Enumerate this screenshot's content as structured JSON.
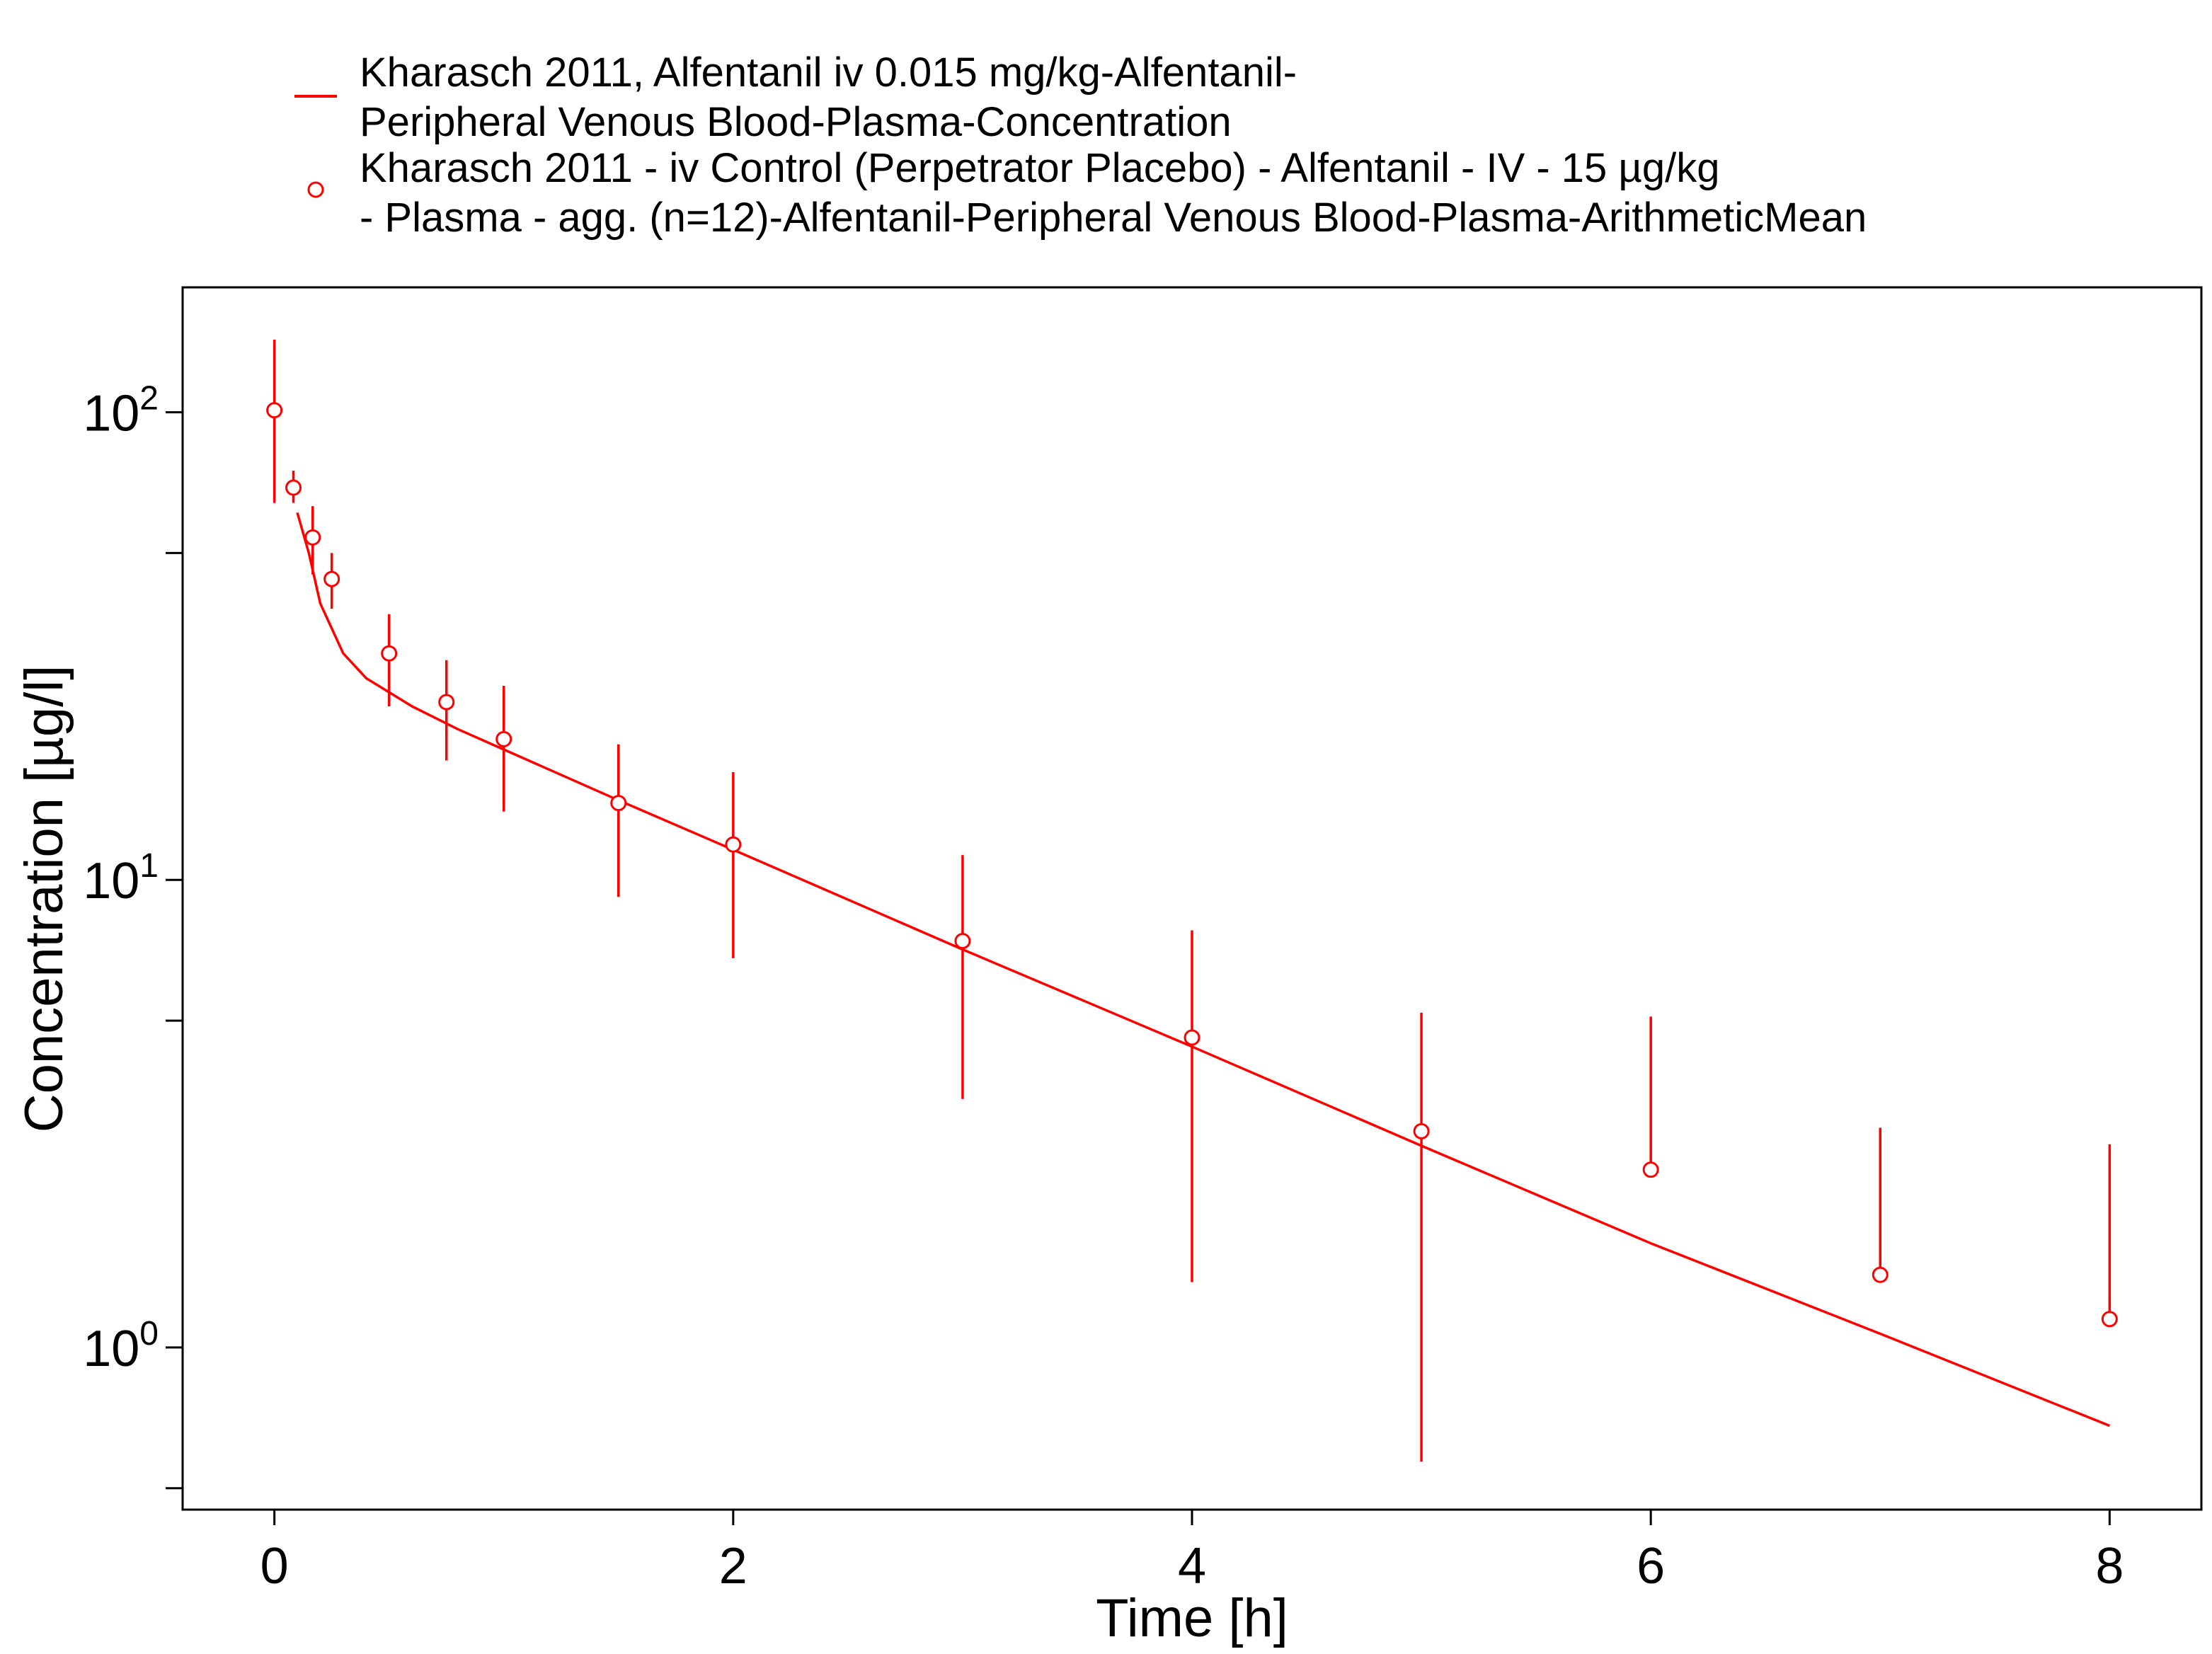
{
  "chart_data": {
    "type": "line",
    "title": "",
    "xlabel": "Time [h]",
    "ylabel": "Concentration [µg/l]",
    "xlim": [
      -0.4,
      8.4
    ],
    "ylim": [
      0.45,
      185
    ],
    "yscale": "log",
    "grid": false,
    "legend_position": "top",
    "x_ticks": [
      0,
      2,
      4,
      6,
      8
    ],
    "x_tick_labels": [
      "0",
      "2",
      "4",
      "6",
      "8"
    ],
    "y_ticks": [
      1,
      10,
      100
    ],
    "y_tick_labels": [
      {
        "base": "10",
        "exp": "0"
      },
      {
        "base": "10",
        "exp": "1"
      },
      {
        "base": "10",
        "exp": "2"
      }
    ],
    "y_minor_ticks": [
      0.5,
      5,
      50
    ],
    "accent_color": "#ff0000",
    "series": [
      {
        "name": "Kharasch 2011, Alfentanil iv 0.015 mg/kg-Alfentanil-Peripheral Venous Blood-Plasma-Concentration",
        "legend_lines": [
          "Kharasch 2011, Alfentanil iv 0.015 mg/kg-Alfentanil-",
          "Peripheral Venous Blood-Plasma-Concentration"
        ],
        "kind": "line",
        "color": "#ff0000",
        "x": [
          0.1,
          0.15,
          0.2,
          0.3,
          0.4,
          0.6,
          0.8,
          1.0,
          1.5,
          2.0,
          3.0,
          4.0,
          5.0,
          6.0,
          7.0,
          8.0
        ],
        "y": [
          61,
          50,
          39,
          30.5,
          27,
          23.5,
          21,
          19,
          14.8,
          11.6,
          7.1,
          4.4,
          2.7,
          1.67,
          1.07,
          0.68
        ]
      },
      {
        "name": "Kharasch 2011 - iv Control (Perpetrator Placebo) - Alfentanil - IV - 15 µg/kg - Plasma - agg. (n=12)-Alfentanil-Peripheral Venous Blood-Plasma-ArithmeticMean",
        "legend_lines": [
          "Kharasch 2011 - iv Control (Perpetrator Placebo) - Alfentanil - IV - 15 µg/kg",
          "- Plasma - agg. (n=12)-Alfentanil-Peripheral Venous Blood-Plasma-ArithmeticMean"
        ],
        "kind": "scatter",
        "marker": "open-circle",
        "color": "#ff0000",
        "x": [
          0,
          0.083,
          0.167,
          0.25,
          0.5,
          0.75,
          1.0,
          1.5,
          2.0,
          3.0,
          4.0,
          5.0,
          6.0,
          7.0,
          8.0
        ],
        "y": [
          101,
          69,
          54,
          44,
          30.5,
          24,
          20,
          14.6,
          11.9,
          7.4,
          4.6,
          2.9,
          2.4,
          1.43,
          1.15
        ],
        "y_err_low": [
          64,
          64,
          45,
          38,
          23.5,
          18,
          14,
          9.2,
          6.8,
          3.4,
          1.38,
          0.57,
          null,
          null,
          null
        ],
        "y_err_high": [
          143,
          75,
          63,
          50,
          37,
          29.5,
          26,
          19.5,
          17,
          11.3,
          7.8,
          5.2,
          5.1,
          2.95,
          2.72
        ]
      }
    ]
  }
}
